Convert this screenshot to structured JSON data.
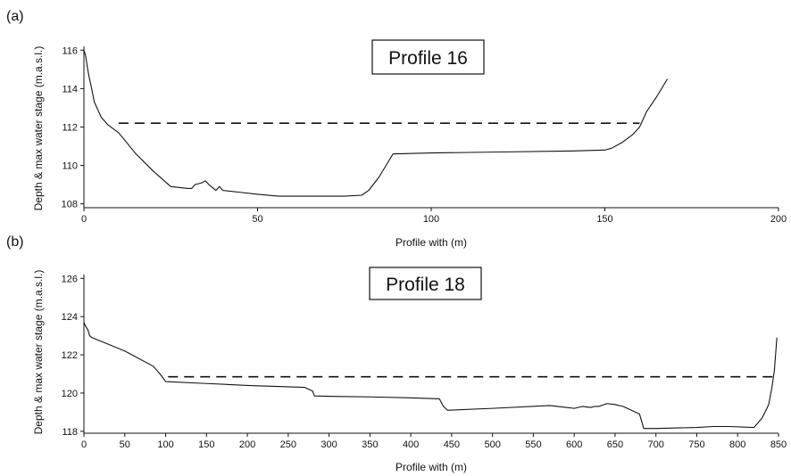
{
  "chart_data": [
    {
      "type": "line",
      "panel_label": "(a)",
      "title": "Profile 16",
      "xlabel": "Profile with (m)",
      "ylabel": "Depth & max water stage (m.a.s.l.)",
      "xlim": [
        0,
        200
      ],
      "ylim": [
        107.8,
        116.2
      ],
      "x_ticks": [
        0,
        50,
        100,
        150,
        200
      ],
      "y_ticks": [
        108,
        110,
        112,
        114,
        116
      ],
      "grid": false,
      "series": [
        {
          "style": "solid",
          "x": [
            0,
            0.5,
            1,
            1.5,
            2,
            3,
            5,
            7,
            10,
            15,
            20,
            25,
            30,
            31,
            32,
            34,
            35,
            36,
            38,
            39,
            40,
            45,
            50,
            56,
            65,
            75,
            80,
            82,
            85,
            87,
            88,
            89,
            100,
            120,
            140,
            150,
            152,
            155,
            158,
            160,
            162,
            165,
            168
          ],
          "y": [
            116.0,
            115.7,
            115.1,
            114.6,
            114.2,
            113.3,
            112.5,
            112.1,
            111.7,
            110.6,
            109.7,
            108.9,
            108.8,
            108.8,
            109.0,
            109.1,
            109.2,
            109.0,
            108.7,
            108.9,
            108.7,
            108.6,
            108.5,
            108.4,
            108.4,
            108.4,
            108.45,
            108.7,
            109.4,
            110.0,
            110.3,
            110.6,
            110.65,
            110.7,
            110.75,
            110.8,
            110.9,
            111.2,
            111.6,
            112.0,
            112.8,
            113.6,
            114.5
          ]
        },
        {
          "style": "dashed",
          "x": [
            10,
            160
          ],
          "y": [
            112.2,
            112.2
          ]
        }
      ]
    },
    {
      "type": "line",
      "panel_label": "(b)",
      "title": "Profile 18",
      "xlabel": "Profile with (m)",
      "ylabel": "Depth & max water stage (m.a.s.l.)",
      "xlim": [
        0,
        850
      ],
      "ylim": [
        117.9,
        126.2
      ],
      "x_ticks": [
        0,
        50,
        100,
        150,
        200,
        250,
        300,
        350,
        400,
        450,
        500,
        550,
        600,
        650,
        700,
        750,
        800,
        850
      ],
      "y_ticks": [
        118,
        120,
        122,
        124,
        126
      ],
      "grid": false,
      "series": [
        {
          "style": "solid",
          "x": [
            0,
            2,
            5,
            7,
            10,
            50,
            85,
            95,
            100,
            150,
            200,
            270,
            275,
            280,
            282,
            300,
            350,
            400,
            435,
            440,
            445,
            500,
            570,
            590,
            600,
            610,
            620,
            625,
            630,
            640,
            650,
            660,
            670,
            680,
            685,
            700,
            750,
            770,
            790,
            820,
            830,
            838,
            842,
            845,
            848
          ],
          "y": [
            123.7,
            123.5,
            123.3,
            123.0,
            122.9,
            122.2,
            121.4,
            120.9,
            120.6,
            120.5,
            120.4,
            120.3,
            120.2,
            120.1,
            119.85,
            119.83,
            119.8,
            119.75,
            119.7,
            119.3,
            119.1,
            119.2,
            119.35,
            119.25,
            119.2,
            119.3,
            119.25,
            119.3,
            119.3,
            119.45,
            119.4,
            119.3,
            119.1,
            118.9,
            118.15,
            118.15,
            118.2,
            118.25,
            118.25,
            118.2,
            118.7,
            119.4,
            120.3,
            121.2,
            122.9
          ]
        },
        {
          "style": "dashed",
          "x": [
            103,
            843
          ],
          "y": [
            120.85,
            120.85
          ]
        }
      ]
    }
  ]
}
